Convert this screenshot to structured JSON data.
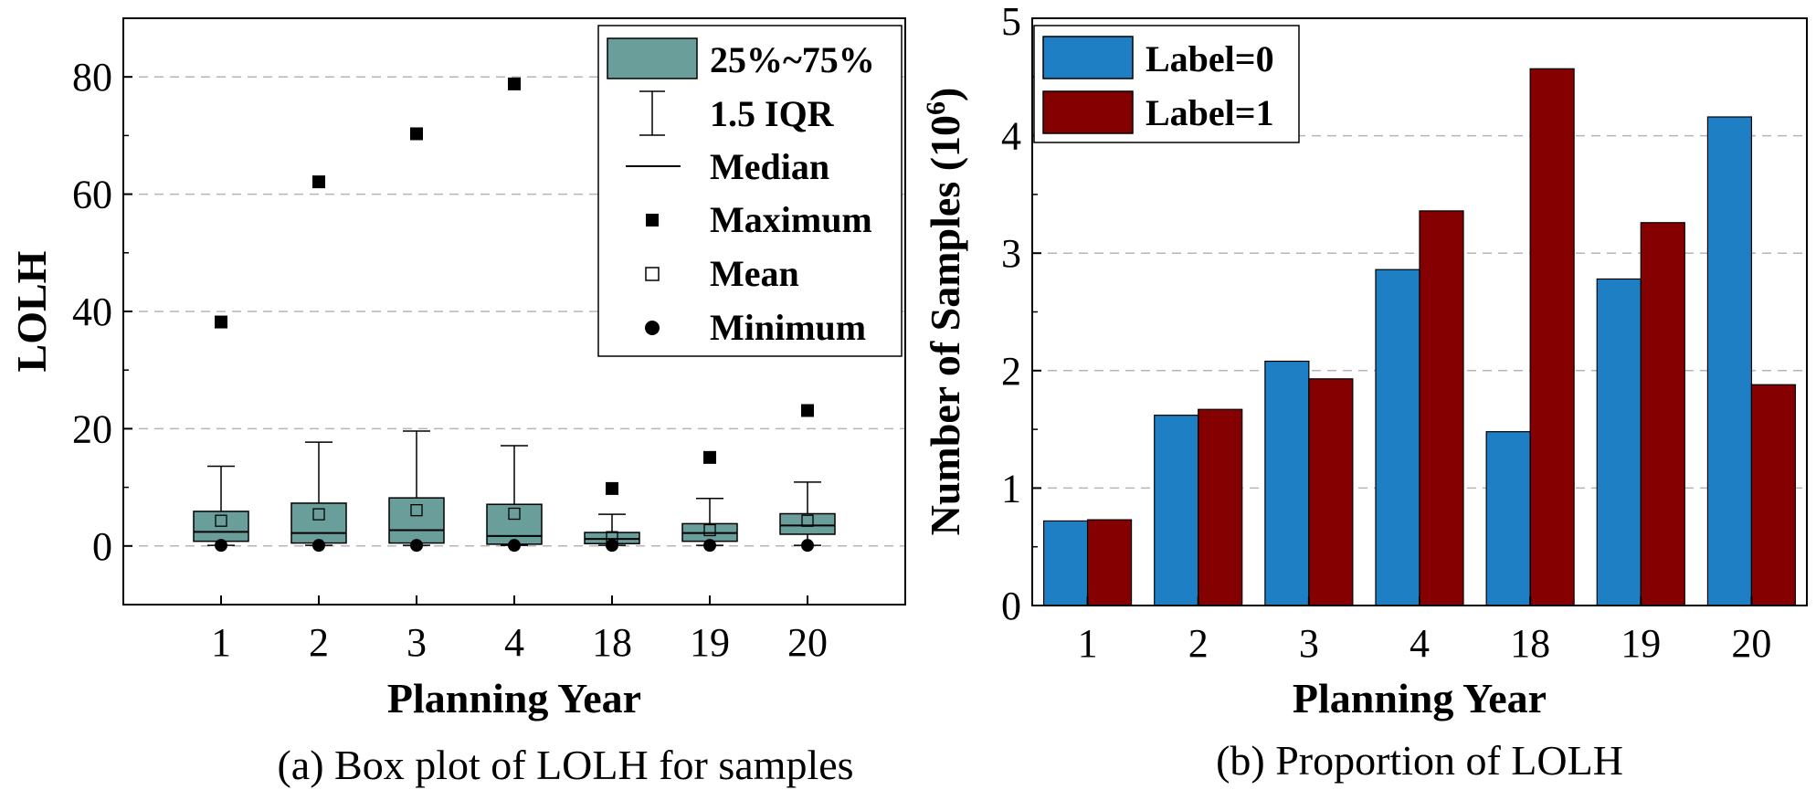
{
  "chart_data": [
    {
      "type": "box",
      "caption": "(a) Box plot of LOLH for samples",
      "xlabel": "Planning Year",
      "ylabel": "LOLH",
      "categories": [
        "1",
        "2",
        "3",
        "4",
        "18",
        "19",
        "20"
      ],
      "ylim": [
        -10,
        90
      ],
      "yticks": [
        0,
        20,
        40,
        60,
        80
      ],
      "grid": true,
      "box_color": "#6a9e9b",
      "boxes": [
        {
          "q1": 0.8,
          "median": 2.4,
          "q3": 5.9,
          "whisker_low": 0.1,
          "whisker_high": 13.6,
          "mean": 4.3,
          "min": 0.1,
          "max": 38.2
        },
        {
          "q1": 0.5,
          "median": 2.2,
          "q3": 7.3,
          "whisker_low": 0.1,
          "whisker_high": 17.7,
          "mean": 5.4,
          "min": 0.1,
          "max": 62.1
        },
        {
          "q1": 0.5,
          "median": 2.7,
          "q3": 8.2,
          "whisker_low": 0.1,
          "whisker_high": 19.6,
          "mean": 6.1,
          "min": 0.1,
          "max": 70.3
        },
        {
          "q1": 0.3,
          "median": 1.7,
          "q3": 7.1,
          "whisker_low": 0.1,
          "whisker_high": 17.1,
          "mean": 5.5,
          "min": 0.1,
          "max": 78.8
        },
        {
          "q1": 0.4,
          "median": 1.2,
          "q3": 2.3,
          "whisker_low": 0.1,
          "whisker_high": 5.4,
          "mean": 1.5,
          "min": 0.1,
          "max": 9.8
        },
        {
          "q1": 0.8,
          "median": 2.2,
          "q3": 3.8,
          "whisker_low": 0.1,
          "whisker_high": 8.1,
          "mean": 2.7,
          "min": 0.1,
          "max": 15.1
        },
        {
          "q1": 2.0,
          "median": 3.5,
          "q3": 5.5,
          "whisker_low": 0.1,
          "whisker_high": 10.9,
          "mean": 4.3,
          "min": 0.1,
          "max": 23.1
        }
      ],
      "legend": {
        "position": "top-right",
        "entries": [
          "25%~75%",
          "1.5 IQR",
          "Median",
          "Maximum",
          "Mean",
          "Minimum"
        ]
      }
    },
    {
      "type": "bar",
      "caption": "(b) Proportion of LOLH",
      "xlabel": "Planning Year",
      "ylabel": "Number of Samples (10",
      "ylabel_sup": "6",
      "ylabel_end": ")",
      "categories": [
        "1",
        "2",
        "3",
        "4",
        "18",
        "19",
        "20"
      ],
      "ylim": [
        0,
        5
      ],
      "yticks": [
        0,
        1,
        2,
        3,
        4,
        5
      ],
      "grid": true,
      "series": [
        {
          "name": "Label=0",
          "color": "#1f7fc4",
          "values": [
            0.72,
            1.62,
            2.08,
            2.86,
            1.48,
            2.78,
            4.16
          ]
        },
        {
          "name": "Label=1",
          "color": "#850000",
          "values": [
            0.73,
            1.67,
            1.93,
            3.36,
            4.57,
            3.26,
            1.88
          ]
        }
      ],
      "legend": {
        "position": "top-left"
      }
    }
  ]
}
